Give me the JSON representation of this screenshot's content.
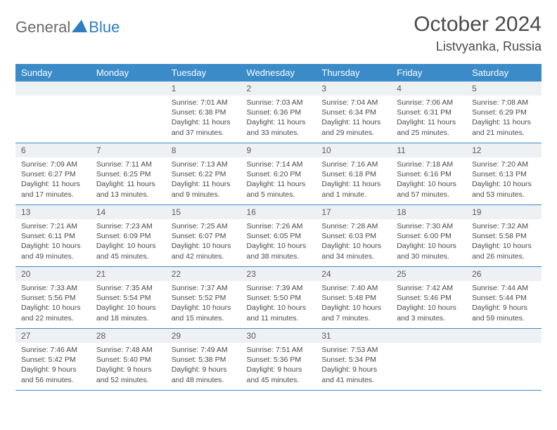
{
  "logo": {
    "general": "General",
    "blue": "Blue"
  },
  "header": {
    "title": "October 2024",
    "location": "Listvyanka, Russia"
  },
  "colors": {
    "header_bg": "#3b8bc9",
    "header_text": "#ffffff",
    "daynum_bg": "#eef1f3",
    "border": "#3b8bc9",
    "text": "#4a4a4a",
    "logo_gray": "#6a6a6a",
    "logo_blue": "#2f7fbf"
  },
  "weekdays": [
    "Sunday",
    "Monday",
    "Tuesday",
    "Wednesday",
    "Thursday",
    "Friday",
    "Saturday"
  ],
  "weeks": [
    [
      null,
      null,
      {
        "num": "1",
        "sunrise": "7:01 AM",
        "sunset": "6:38 PM",
        "daylight": "11 hours and 37 minutes."
      },
      {
        "num": "2",
        "sunrise": "7:03 AM",
        "sunset": "6:36 PM",
        "daylight": "11 hours and 33 minutes."
      },
      {
        "num": "3",
        "sunrise": "7:04 AM",
        "sunset": "6:34 PM",
        "daylight": "11 hours and 29 minutes."
      },
      {
        "num": "4",
        "sunrise": "7:06 AM",
        "sunset": "6:31 PM",
        "daylight": "11 hours and 25 minutes."
      },
      {
        "num": "5",
        "sunrise": "7:08 AM",
        "sunset": "6:29 PM",
        "daylight": "11 hours and 21 minutes."
      }
    ],
    [
      {
        "num": "6",
        "sunrise": "7:09 AM",
        "sunset": "6:27 PM",
        "daylight": "11 hours and 17 minutes."
      },
      {
        "num": "7",
        "sunrise": "7:11 AM",
        "sunset": "6:25 PM",
        "daylight": "11 hours and 13 minutes."
      },
      {
        "num": "8",
        "sunrise": "7:13 AM",
        "sunset": "6:22 PM",
        "daylight": "11 hours and 9 minutes."
      },
      {
        "num": "9",
        "sunrise": "7:14 AM",
        "sunset": "6:20 PM",
        "daylight": "11 hours and 5 minutes."
      },
      {
        "num": "10",
        "sunrise": "7:16 AM",
        "sunset": "6:18 PM",
        "daylight": "11 hours and 1 minute."
      },
      {
        "num": "11",
        "sunrise": "7:18 AM",
        "sunset": "6:16 PM",
        "daylight": "10 hours and 57 minutes."
      },
      {
        "num": "12",
        "sunrise": "7:20 AM",
        "sunset": "6:13 PM",
        "daylight": "10 hours and 53 minutes."
      }
    ],
    [
      {
        "num": "13",
        "sunrise": "7:21 AM",
        "sunset": "6:11 PM",
        "daylight": "10 hours and 49 minutes."
      },
      {
        "num": "14",
        "sunrise": "7:23 AM",
        "sunset": "6:09 PM",
        "daylight": "10 hours and 45 minutes."
      },
      {
        "num": "15",
        "sunrise": "7:25 AM",
        "sunset": "6:07 PM",
        "daylight": "10 hours and 42 minutes."
      },
      {
        "num": "16",
        "sunrise": "7:26 AM",
        "sunset": "6:05 PM",
        "daylight": "10 hours and 38 minutes."
      },
      {
        "num": "17",
        "sunrise": "7:28 AM",
        "sunset": "6:03 PM",
        "daylight": "10 hours and 34 minutes."
      },
      {
        "num": "18",
        "sunrise": "7:30 AM",
        "sunset": "6:00 PM",
        "daylight": "10 hours and 30 minutes."
      },
      {
        "num": "19",
        "sunrise": "7:32 AM",
        "sunset": "5:58 PM",
        "daylight": "10 hours and 26 minutes."
      }
    ],
    [
      {
        "num": "20",
        "sunrise": "7:33 AM",
        "sunset": "5:56 PM",
        "daylight": "10 hours and 22 minutes."
      },
      {
        "num": "21",
        "sunrise": "7:35 AM",
        "sunset": "5:54 PM",
        "daylight": "10 hours and 18 minutes."
      },
      {
        "num": "22",
        "sunrise": "7:37 AM",
        "sunset": "5:52 PM",
        "daylight": "10 hours and 15 minutes."
      },
      {
        "num": "23",
        "sunrise": "7:39 AM",
        "sunset": "5:50 PM",
        "daylight": "10 hours and 11 minutes."
      },
      {
        "num": "24",
        "sunrise": "7:40 AM",
        "sunset": "5:48 PM",
        "daylight": "10 hours and 7 minutes."
      },
      {
        "num": "25",
        "sunrise": "7:42 AM",
        "sunset": "5:46 PM",
        "daylight": "10 hours and 3 minutes."
      },
      {
        "num": "26",
        "sunrise": "7:44 AM",
        "sunset": "5:44 PM",
        "daylight": "9 hours and 59 minutes."
      }
    ],
    [
      {
        "num": "27",
        "sunrise": "7:46 AM",
        "sunset": "5:42 PM",
        "daylight": "9 hours and 56 minutes."
      },
      {
        "num": "28",
        "sunrise": "7:48 AM",
        "sunset": "5:40 PM",
        "daylight": "9 hours and 52 minutes."
      },
      {
        "num": "29",
        "sunrise": "7:49 AM",
        "sunset": "5:38 PM",
        "daylight": "9 hours and 48 minutes."
      },
      {
        "num": "30",
        "sunrise": "7:51 AM",
        "sunset": "5:36 PM",
        "daylight": "9 hours and 45 minutes."
      },
      {
        "num": "31",
        "sunrise": "7:53 AM",
        "sunset": "5:34 PM",
        "daylight": "9 hours and 41 minutes."
      },
      null,
      null
    ]
  ],
  "labels": {
    "sunrise": "Sunrise:",
    "sunset": "Sunset:",
    "daylight": "Daylight:"
  }
}
